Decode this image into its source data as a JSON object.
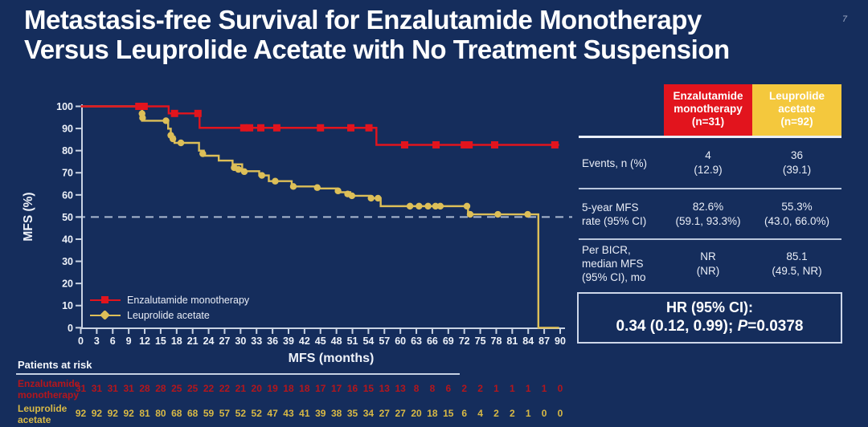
{
  "slide": {
    "title_line1": "Metastasis-free Survival for Enzalutamide Monotherapy",
    "title_line2": "Versus Leuprolide Acetate with No Treatment Suspension",
    "page_number": "7",
    "background_color": "#152d5c"
  },
  "chart_data": {
    "type": "line",
    "subtype": "kaplan-meier-step",
    "xlabel": "MFS (months)",
    "ylabel": "MFS (%)",
    "xlim": [
      0,
      90
    ],
    "ylim": [
      0,
      100
    ],
    "x_ticks": [
      0,
      3,
      6,
      9,
      12,
      15,
      18,
      21,
      24,
      27,
      30,
      33,
      36,
      39,
      42,
      45,
      48,
      51,
      54,
      57,
      60,
      63,
      66,
      69,
      72,
      75,
      78,
      81,
      84,
      87,
      90
    ],
    "y_ticks": [
      0,
      10,
      20,
      30,
      40,
      50,
      60,
      70,
      80,
      90,
      100
    ],
    "reference_line_y": 50,
    "grid": false,
    "legend_position": "lower-left",
    "series": [
      {
        "name": "Enzalutamide monotherapy",
        "color": "#e2141d",
        "marker": "square",
        "steps": [
          [
            0,
            100
          ],
          [
            16.5,
            100
          ],
          [
            16.5,
            96.8
          ],
          [
            22.3,
            96.8
          ],
          [
            22.3,
            90.3
          ],
          [
            55.5,
            90.3
          ],
          [
            55.5,
            82.6
          ],
          [
            89.8,
            82.6
          ]
        ],
        "censor_marks": [
          [
            10.9,
            100
          ],
          [
            11.9,
            100
          ],
          [
            17.6,
            96.8
          ],
          [
            22.0,
            96.8
          ],
          [
            30.6,
            90.3
          ],
          [
            31.7,
            90.3
          ],
          [
            33.8,
            90.3
          ],
          [
            36.8,
            90.3
          ],
          [
            45.0,
            90.3
          ],
          [
            50.7,
            90.3
          ],
          [
            54.1,
            90.3
          ],
          [
            60.8,
            82.6
          ],
          [
            66.7,
            82.6
          ],
          [
            72.0,
            82.6
          ],
          [
            72.9,
            82.6
          ],
          [
            77.7,
            82.6
          ],
          [
            89.0,
            82.6
          ]
        ]
      },
      {
        "name": "Leuprolide acetate",
        "color": "#ddbf58",
        "marker": "circle",
        "steps": [
          [
            0,
            100
          ],
          [
            11.5,
            100
          ],
          [
            11.5,
            93.5
          ],
          [
            16.4,
            93.5
          ],
          [
            16.4,
            89.9
          ],
          [
            16.9,
            89.9
          ],
          [
            16.9,
            86.3
          ],
          [
            17.6,
            86.3
          ],
          [
            17.6,
            83.5
          ],
          [
            22.2,
            83.5
          ],
          [
            22.2,
            80.0
          ],
          [
            23.1,
            80.0
          ],
          [
            23.1,
            77.7
          ],
          [
            25.9,
            77.7
          ],
          [
            25.9,
            75.5
          ],
          [
            28.5,
            75.5
          ],
          [
            28.5,
            73.8
          ],
          [
            30.3,
            73.8
          ],
          [
            30.3,
            70.7
          ],
          [
            33.5,
            70.7
          ],
          [
            33.5,
            68.8
          ],
          [
            35.3,
            68.8
          ],
          [
            35.3,
            66.2
          ],
          [
            39.6,
            66.2
          ],
          [
            39.6,
            63.8
          ],
          [
            44.6,
            63.8
          ],
          [
            44.6,
            62.9
          ],
          [
            48.2,
            62.9
          ],
          [
            48.2,
            61.2
          ],
          [
            50.6,
            61.2
          ],
          [
            50.6,
            59.6
          ],
          [
            54.3,
            59.6
          ],
          [
            54.3,
            58.5
          ],
          [
            56.3,
            58.5
          ],
          [
            56.3,
            54.9
          ],
          [
            72.7,
            54.9
          ],
          [
            72.7,
            51.2
          ],
          [
            85.9,
            51.2
          ],
          [
            85.9,
            0
          ],
          [
            89.8,
            0
          ]
        ],
        "censor_marks": [
          [
            11.5,
            96.7
          ],
          [
            11.6,
            94.8
          ],
          [
            16.0,
            93.5
          ],
          [
            16.9,
            86.9
          ],
          [
            17.3,
            85.3
          ],
          [
            18.8,
            83.5
          ],
          [
            22.9,
            78.6
          ],
          [
            28.8,
            72.3
          ],
          [
            29.6,
            71.5
          ],
          [
            30.7,
            70.5
          ],
          [
            34.0,
            68.8
          ],
          [
            36.5,
            66.2
          ],
          [
            39.9,
            63.8
          ],
          [
            44.4,
            63.3
          ],
          [
            48.3,
            61.8
          ],
          [
            50.1,
            60.4
          ],
          [
            50.9,
            59.6
          ],
          [
            54.5,
            58.5
          ],
          [
            55.8,
            58.5
          ],
          [
            61.8,
            54.9
          ],
          [
            63.5,
            54.9
          ],
          [
            65.2,
            54.9
          ],
          [
            66.6,
            54.9
          ],
          [
            67.5,
            54.9
          ],
          [
            72.5,
            54.9
          ],
          [
            73.1,
            51.2
          ],
          [
            78.3,
            51.2
          ],
          [
            83.9,
            51.2
          ]
        ]
      }
    ]
  },
  "risk_table": {
    "heading": "Patients at risk",
    "timepoints": [
      0,
      3,
      6,
      9,
      12,
      15,
      18,
      21,
      24,
      27,
      30,
      33,
      36,
      39,
      42,
      45,
      48,
      51,
      54,
      57,
      60,
      63,
      66,
      69,
      72,
      75,
      78,
      81,
      84,
      87,
      90
    ],
    "rows": [
      {
        "label": "Enzalutamide\nmonotherapy",
        "color": "#b5161c",
        "counts": [
          31,
          31,
          31,
          31,
          28,
          28,
          25,
          25,
          22,
          22,
          21,
          20,
          19,
          18,
          18,
          17,
          17,
          16,
          15,
          13,
          13,
          8,
          8,
          6,
          2,
          2,
          1,
          1,
          1,
          1,
          0
        ]
      },
      {
        "label": "Leuprolide\nacetate",
        "color": "#d8b945",
        "counts": [
          92,
          92,
          92,
          92,
          81,
          80,
          68,
          68,
          59,
          57,
          52,
          52,
          47,
          43,
          41,
          39,
          38,
          35,
          34,
          27,
          27,
          20,
          18,
          15,
          6,
          4,
          2,
          2,
          1,
          0,
          0
        ]
      }
    ]
  },
  "summary_table": {
    "columns": [
      {
        "label": "Enzalutamide\nmonotherapy\n(n=31)",
        "color": "#e2141d"
      },
      {
        "label": "Leuprolide\nacetate\n(n=92)",
        "color": "#f4c83d"
      }
    ],
    "rows": [
      {
        "label": "Events, n (%)",
        "enzalutamide": "4\n(12.9)",
        "leuprolide": "36\n(39.1)"
      },
      {
        "label": "5-year MFS\nrate (95% CI)",
        "enzalutamide": "82.6%\n(59.1, 93.3%)",
        "leuprolide": "55.3%\n(43.0, 66.0%)"
      },
      {
        "label": "Per BICR,\nmedian MFS\n(95% CI), mo",
        "enzalutamide": "NR\n(NR)",
        "leuprolide": "85.1\n(49.5, NR)"
      }
    ],
    "hr_box": {
      "line1": "HR (95% CI):",
      "value_pre": "0.34 (0.12, 0.99); ",
      "p_label": "P",
      "p_value": "=0.0378"
    }
  }
}
